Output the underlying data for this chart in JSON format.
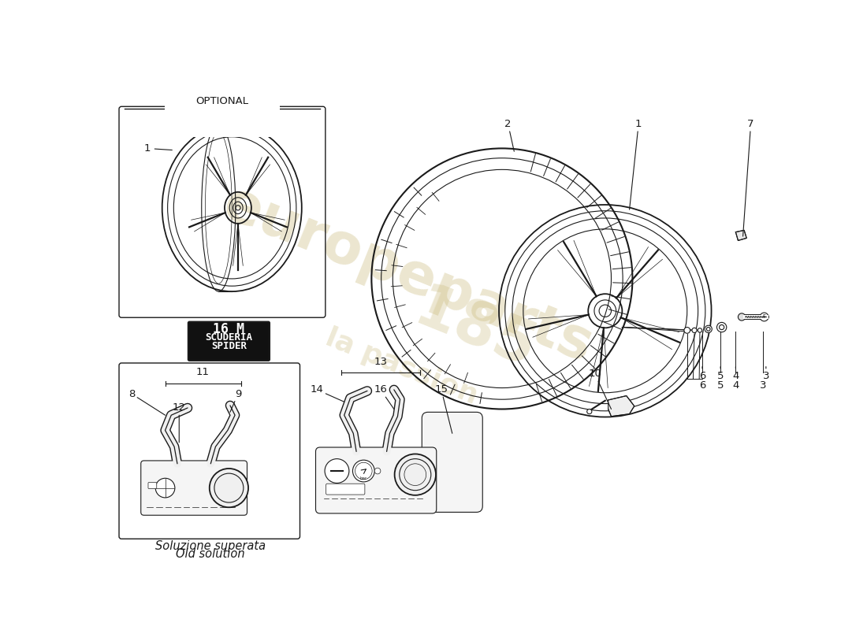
{
  "bg_color": "#ffffff",
  "lc": "#1a1a1a",
  "wm_color1": "#c8b878",
  "wm_color2": "#d4c070",
  "fig_w": 11.0,
  "fig_h": 8.0,
  "dpi": 100,
  "optional_label": "OPTIONAL",
  "old_sol1": "Soluzione superata",
  "old_sol2": "Old solution",
  "scuderia_lines": [
    "16 M",
    "SCUDERIA",
    "SPIDER"
  ],
  "part_numbers_main": [
    "1",
    "2",
    "3",
    "4",
    "5",
    "6",
    "7",
    "10"
  ],
  "part_numbers_old": [
    "8",
    "9",
    "11",
    "12"
  ],
  "part_numbers_new": [
    "13",
    "14",
    "15",
    "16"
  ]
}
